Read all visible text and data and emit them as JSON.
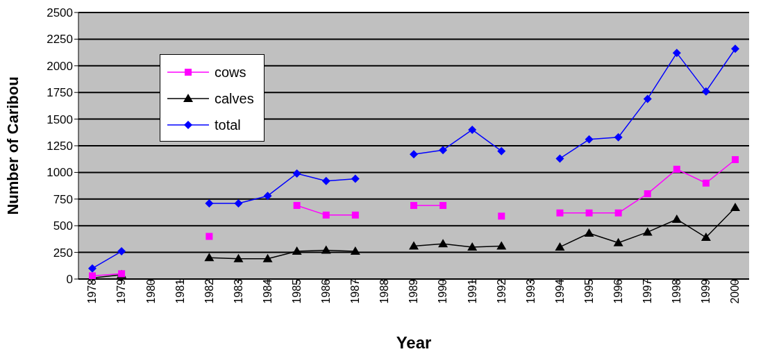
{
  "chart_data": {
    "type": "line",
    "xlabel": "Year",
    "ylabel": "Number of Caribou",
    "categories": [
      "1978",
      "1979",
      "1980",
      "1981",
      "1982",
      "1983",
      "1984",
      "1985",
      "1986",
      "1987",
      "1988",
      "1989",
      "1990",
      "1991",
      "1992",
      "1993",
      "1994",
      "1995",
      "1996",
      "1997",
      "1998",
      "1999",
      "2000"
    ],
    "series": [
      {
        "name": "cows",
        "color": "#ff00ff",
        "marker": "square",
        "values": [
          30,
          50,
          null,
          null,
          400,
          null,
          null,
          690,
          600,
          600,
          null,
          690,
          690,
          null,
          590,
          null,
          620,
          620,
          620,
          800,
          1030,
          900,
          1120
        ]
      },
      {
        "name": "calves",
        "color": "#000000",
        "marker": "triangle",
        "values": [
          10,
          40,
          null,
          null,
          200,
          190,
          190,
          260,
          270,
          260,
          null,
          310,
          330,
          300,
          310,
          null,
          300,
          430,
          340,
          440,
          560,
          390,
          670
        ]
      },
      {
        "name": "total",
        "color": "#0000ff",
        "marker": "diamond",
        "values": [
          100,
          260,
          null,
          null,
          710,
          710,
          780,
          990,
          920,
          940,
          null,
          1170,
          1210,
          1400,
          1200,
          null,
          1130,
          1310,
          1330,
          1690,
          2120,
          1760,
          2160
        ]
      }
    ],
    "ylim": [
      0,
      2500
    ],
    "yticks": [
      0,
      250,
      500,
      750,
      1000,
      1250,
      1500,
      1750,
      2000,
      2250,
      2500
    ],
    "grid": "y",
    "legend": "top left"
  }
}
